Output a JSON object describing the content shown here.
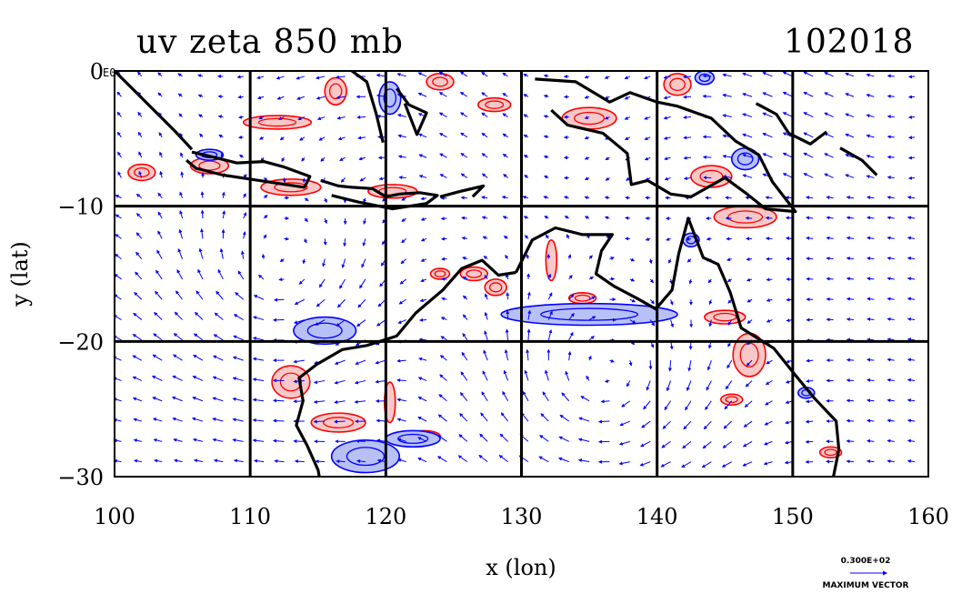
{
  "title_left": "uv zeta 850 mb",
  "title_right": "102018",
  "chart_data": {
    "type": "vector_contour_map",
    "title": "uv zeta 850 mb",
    "date_label": "102018",
    "xlabel": "x (lon)",
    "ylabel": "y (lat)",
    "xlim": [
      100,
      160
    ],
    "ylim": [
      -30,
      0
    ],
    "x_ticks": [
      100,
      110,
      120,
      130,
      140,
      150,
      160
    ],
    "y_ticks": [
      0,
      -10,
      -20,
      -30
    ],
    "y_tick_labels": [
      "0",
      "−10",
      "−20",
      "−30"
    ],
    "corner_label": "E0",
    "grid": true,
    "vector_color": "#0000ff",
    "positive_contour_color": "#ff0000",
    "negative_contour_color": "#0000ff",
    "positive_fill": "#f8c8c8",
    "negative_fill": "#b8c0f8",
    "coast_color": "#000000",
    "reference_vector": {
      "value_label": "0.300E+02",
      "caption": "MAXIMUM VECTOR"
    },
    "coastlines": [
      [
        [
          100,
          0
        ],
        [
          101.5,
          -1.5
        ],
        [
          103,
          -3
        ],
        [
          104.5,
          -4.5
        ],
        [
          105.7,
          -5.8
        ]
      ],
      [
        [
          105.7,
          -6
        ],
        [
          107,
          -6.3
        ],
        [
          109,
          -6.8
        ],
        [
          111,
          -6.7
        ],
        [
          112.5,
          -7.1
        ],
        [
          114.4,
          -7.8
        ],
        [
          114,
          -8.6
        ],
        [
          112,
          -8.3
        ],
        [
          110,
          -8
        ],
        [
          108,
          -7.7
        ],
        [
          106,
          -7.2
        ],
        [
          105.3,
          -6.6
        ]
      ],
      [
        [
          115.2,
          -8.1
        ],
        [
          116.5,
          -8.5
        ],
        [
          117.5,
          -8.6
        ],
        [
          119,
          -8.7
        ],
        [
          120,
          -9.3
        ],
        [
          121,
          -9.1
        ],
        [
          122.5,
          -9
        ],
        [
          123.8,
          -9.2
        ],
        [
          123,
          -9.8
        ],
        [
          120.5,
          -10.2
        ],
        [
          118,
          -9.7
        ],
        [
          116,
          -9.2
        ]
      ],
      [
        [
          124,
          -9.3
        ],
        [
          125.5,
          -8.9
        ],
        [
          127.2,
          -8.5
        ],
        [
          126.4,
          -9.3
        ]
      ],
      [
        [
          117.5,
          0
        ],
        [
          118.6,
          -0.8
        ],
        [
          119.3,
          -3.2
        ],
        [
          119.8,
          -5.3
        ]
      ],
      [
        [
          120.8,
          -1.3
        ],
        [
          121.7,
          -2.5
        ],
        [
          123,
          -3.1
        ],
        [
          122.3,
          -4.7
        ],
        [
          121.4,
          -2.4
        ]
      ],
      [
        [
          131,
          -0.6
        ],
        [
          134,
          -0.8
        ],
        [
          136.5,
          -2.3
        ],
        [
          138,
          -1.6
        ],
        [
          140,
          -2.3
        ],
        [
          141.5,
          -2.6
        ],
        [
          144,
          -3.5
        ],
        [
          145.8,
          -5.2
        ],
        [
          147.5,
          -6.2
        ],
        [
          148.5,
          -8.2
        ],
        [
          150.2,
          -10.4
        ],
        [
          148,
          -10.2
        ],
        [
          146.5,
          -9
        ],
        [
          145,
          -7.9
        ],
        [
          142.5,
          -9.3
        ],
        [
          141,
          -9.1
        ],
        [
          139.3,
          -8.1
        ],
        [
          138.1,
          -8.4
        ],
        [
          137.8,
          -6.1
        ],
        [
          136,
          -4.6
        ],
        [
          133.4,
          -4
        ],
        [
          132.2,
          -2.9
        ]
      ],
      [
        [
          147.3,
          -2.4
        ],
        [
          148.8,
          -3.2
        ],
        [
          149.7,
          -4.6
        ],
        [
          151.3,
          -5.4
        ],
        [
          152.5,
          -4.5
        ]
      ],
      [
        [
          153.5,
          -5.7
        ],
        [
          155.1,
          -6.6
        ],
        [
          156.2,
          -7.7
        ]
      ],
      [
        [
          129.6,
          -14.9
        ],
        [
          130.8,
          -12.5
        ],
        [
          132.5,
          -11.6
        ],
        [
          134.5,
          -12.1
        ],
        [
          136.7,
          -12.1
        ],
        [
          135.9,
          -13.3
        ],
        [
          135.5,
          -15
        ],
        [
          136.8,
          -15.9
        ],
        [
          138.5,
          -16.8
        ],
        [
          139.9,
          -17.6
        ],
        [
          141.1,
          -16.2
        ],
        [
          141.6,
          -13.5
        ],
        [
          142.3,
          -10.9
        ],
        [
          143.4,
          -13.8
        ],
        [
          144.5,
          -14.3
        ],
        [
          145.4,
          -16.4
        ],
        [
          146.2,
          -19
        ],
        [
          148.6,
          -20.5
        ],
        [
          150.2,
          -22.5
        ],
        [
          151.6,
          -24.2
        ],
        [
          153.2,
          -25.9
        ],
        [
          153.4,
          -28
        ],
        [
          153,
          -30
        ]
      ],
      [
        [
          129.6,
          -14.9
        ],
        [
          128.3,
          -15.1
        ],
        [
          127.1,
          -14
        ],
        [
          125.6,
          -14.6
        ],
        [
          124.2,
          -16.2
        ],
        [
          122.2,
          -17.9
        ],
        [
          120.8,
          -19.6
        ],
        [
          118.6,
          -20.3
        ],
        [
          116.8,
          -20.6
        ],
        [
          114.9,
          -21.7
        ],
        [
          113.6,
          -22.7
        ],
        [
          113.9,
          -24.4
        ],
        [
          113.4,
          -26.2
        ],
        [
          114.2,
          -27.7
        ],
        [
          115,
          -29.5
        ],
        [
          115.1,
          -30
        ]
      ]
    ],
    "vorticity_cells": [
      {
        "lon": 102,
        "lat": -7.5,
        "rx": 1.0,
        "ry": 0.6,
        "sign": "positive"
      },
      {
        "lon": 107,
        "lat": -7.0,
        "rx": 1.4,
        "ry": 0.6,
        "sign": "positive"
      },
      {
        "lon": 113,
        "lat": -8.6,
        "rx": 2.2,
        "ry": 0.6,
        "sign": "positive"
      },
      {
        "lon": 120.5,
        "lat": -8.9,
        "rx": 1.8,
        "ry": 0.5,
        "sign": "positive"
      },
      {
        "lon": 112,
        "lat": -3.8,
        "rx": 2.5,
        "ry": 0.5,
        "sign": "positive"
      },
      {
        "lon": 116.3,
        "lat": -1.5,
        "rx": 0.8,
        "ry": 1.0,
        "sign": "positive"
      },
      {
        "lon": 124,
        "lat": -0.8,
        "rx": 1.0,
        "ry": 0.6,
        "sign": "positive"
      },
      {
        "lon": 128,
        "lat": -2.5,
        "rx": 1.2,
        "ry": 0.5,
        "sign": "positive"
      },
      {
        "lon": 135,
        "lat": -3.5,
        "rx": 2.0,
        "ry": 0.8,
        "sign": "positive"
      },
      {
        "lon": 141.5,
        "lat": -1.0,
        "rx": 1.0,
        "ry": 0.8,
        "sign": "positive"
      },
      {
        "lon": 144,
        "lat": -7.8,
        "rx": 1.5,
        "ry": 0.8,
        "sign": "positive"
      },
      {
        "lon": 146.5,
        "lat": -10.8,
        "rx": 2.3,
        "ry": 0.8,
        "sign": "positive"
      },
      {
        "lon": 132.2,
        "lat": -14.0,
        "rx": 0.4,
        "ry": 1.5,
        "sign": "positive"
      },
      {
        "lon": 128.1,
        "lat": -16.0,
        "rx": 0.8,
        "ry": 0.6,
        "sign": "positive"
      },
      {
        "lon": 124,
        "lat": -15.0,
        "rx": 0.7,
        "ry": 0.4,
        "sign": "positive"
      },
      {
        "lon": 126.5,
        "lat": -15.0,
        "rx": 1.0,
        "ry": 0.5,
        "sign": "positive"
      },
      {
        "lon": 134.5,
        "lat": -16.8,
        "rx": 1.0,
        "ry": 0.4,
        "sign": "positive"
      },
      {
        "lon": 145,
        "lat": -18.2,
        "rx": 1.5,
        "ry": 0.5,
        "sign": "positive"
      },
      {
        "lon": 146.8,
        "lat": -21.0,
        "rx": 1.2,
        "ry": 1.6,
        "sign": "positive"
      },
      {
        "lon": 113,
        "lat": -23.0,
        "rx": 1.4,
        "ry": 1.2,
        "sign": "positive"
      },
      {
        "lon": 116.5,
        "lat": -26.0,
        "rx": 2.0,
        "ry": 0.7,
        "sign": "positive"
      },
      {
        "lon": 120.3,
        "lat": -24.5,
        "rx": 0.4,
        "ry": 1.5,
        "sign": "positive"
      },
      {
        "lon": 122.8,
        "lat": -27.0,
        "rx": 1.2,
        "ry": 0.4,
        "sign": "positive"
      },
      {
        "lon": 152.8,
        "lat": -28.2,
        "rx": 0.8,
        "ry": 0.4,
        "sign": "positive"
      },
      {
        "lon": 145.5,
        "lat": -24.3,
        "rx": 0.8,
        "ry": 0.4,
        "sign": "positive"
      },
      {
        "lon": 135,
        "lat": -18.0,
        "rx": 6.5,
        "ry": 0.8,
        "sign": "negative"
      },
      {
        "lon": 115.5,
        "lat": -19.2,
        "rx": 2.3,
        "ry": 1.0,
        "sign": "negative"
      },
      {
        "lon": 118.5,
        "lat": -28.5,
        "rx": 2.5,
        "ry": 1.2,
        "sign": "negative"
      },
      {
        "lon": 122,
        "lat": -27.2,
        "rx": 2.0,
        "ry": 0.6,
        "sign": "negative"
      },
      {
        "lon": 120.3,
        "lat": -2.0,
        "rx": 0.8,
        "ry": 1.2,
        "sign": "negative"
      },
      {
        "lon": 143.5,
        "lat": -0.5,
        "rx": 0.7,
        "ry": 0.5,
        "sign": "negative"
      },
      {
        "lon": 146.5,
        "lat": -6.5,
        "rx": 1.0,
        "ry": 0.8,
        "sign": "negative"
      },
      {
        "lon": 142.5,
        "lat": -12.5,
        "rx": 0.6,
        "ry": 0.5,
        "sign": "negative"
      },
      {
        "lon": 107,
        "lat": -6.2,
        "rx": 1.0,
        "ry": 0.4,
        "sign": "negative"
      },
      {
        "lon": 151,
        "lat": -23.8,
        "rx": 0.6,
        "ry": 0.4,
        "sign": "negative"
      }
    ]
  }
}
